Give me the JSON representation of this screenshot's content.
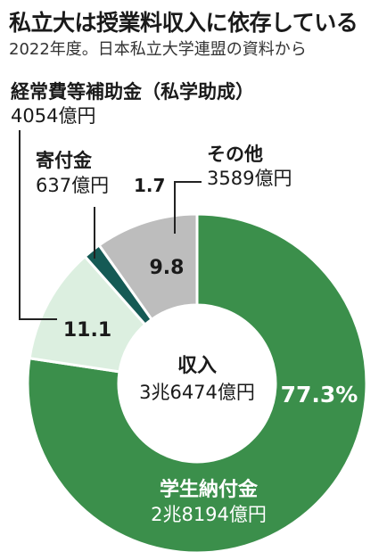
{
  "title": "私立大は授業料収入に依存している",
  "subtitle": "2022年度。日本私立大学連盟の資料から",
  "center": {
    "label": "収入",
    "value": "3兆6474億円"
  },
  "colors": {
    "tuition": "#3b8f4b",
    "subsidy": "#dcefe0",
    "donation": "#155a55",
    "other": "#bdbdbd",
    "leader": "#222222"
  },
  "chart_data": {
    "type": "pie",
    "donut": true,
    "title": "私立大は授業料収入に依存している",
    "subtitle": "2022年度。日本私立大学連盟の資料から",
    "total_label": "収入",
    "total": "3兆6474億円",
    "slices": [
      {
        "key": "tuition",
        "name": "学生納付金",
        "amount": "2兆8194億円",
        "percent": 77.3,
        "percent_label": "77.3%"
      },
      {
        "key": "subsidy",
        "name": "経常費等補助金（私学助成）",
        "amount": "4054億円",
        "percent": 11.1,
        "percent_label": "11.1"
      },
      {
        "key": "donation",
        "name": "寄付金",
        "amount": "637億円",
        "percent": 1.7,
        "percent_label": "1.7"
      },
      {
        "key": "other",
        "name": "その他",
        "amount": "3589億円",
        "percent": 9.8,
        "percent_label": "9.8"
      }
    ]
  }
}
